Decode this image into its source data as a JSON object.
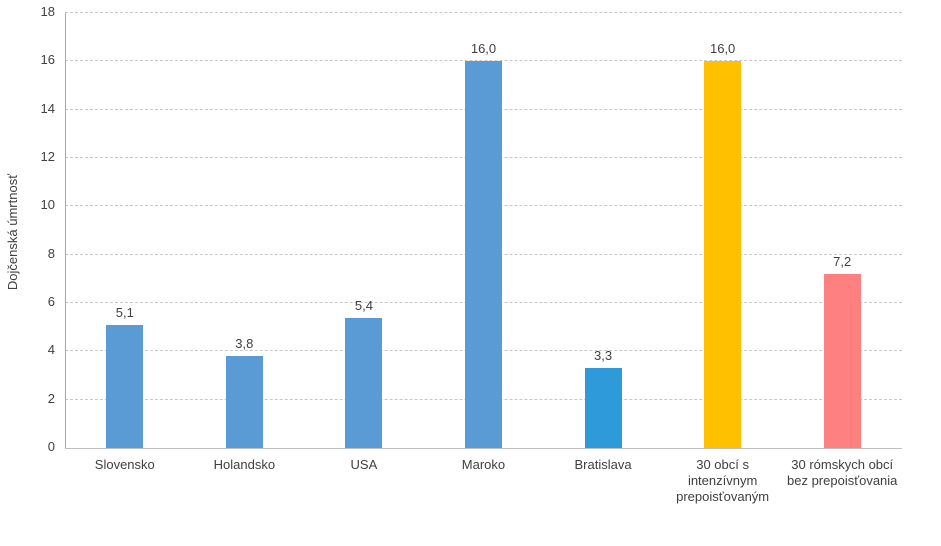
{
  "chart_data": {
    "type": "bar",
    "title": "",
    "xlabel": "",
    "ylabel": "Dojčenská úmrtnosť",
    "ylim": [
      0,
      18
    ],
    "ytick_step": 2,
    "yticks": [
      "0",
      "2",
      "4",
      "6",
      "8",
      "10",
      "12",
      "14",
      "16",
      "18"
    ],
    "grid": "horizontal-dashed",
    "legend_position": "none",
    "decimal_separator": ",",
    "categories": [
      "Slovensko",
      "Holandsko",
      "USA",
      "Maroko",
      "Bratislava",
      "30 obcí s\nintenzívnym\nprepoisťovaným",
      "30 rómskych obcí\nbez prepoisťovania"
    ],
    "values": [
      5.1,
      3.8,
      5.4,
      16.0,
      3.3,
      16.0,
      7.2
    ],
    "value_labels": [
      "5,1",
      "3,8",
      "5,4",
      "16,0",
      "3,3",
      "16,0",
      "7,2"
    ],
    "bar_colors": [
      "#5B9BD5",
      "#5B9BD5",
      "#5B9BD5",
      "#5B9BD5",
      "#2E9AD9",
      "#FFC000",
      "#FF8080"
    ],
    "colors": {
      "blue_default": "#5B9BD5",
      "blue_bright": "#2E9AD9",
      "gold": "#FFC000",
      "salmon": "#FF8080",
      "axis_line": "#A6A6A6",
      "baseline": "#BFBFBF",
      "gridline": "#C8C8C8",
      "text": "#3F3F3F"
    }
  }
}
